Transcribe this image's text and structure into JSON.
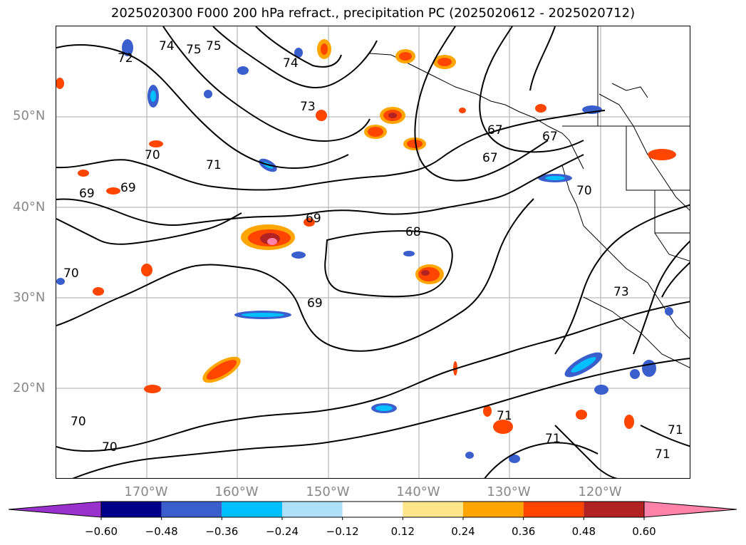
{
  "title": "2025020300 F000 200 hPa refract., precipitation PC (2025020612 - 2025020712)",
  "lat_labels": [
    "50°N",
    "40°N",
    "30°N",
    "20°N"
  ],
  "lon_labels": [
    "170°W",
    "160°W",
    "150°W",
    "140°W",
    "130°W",
    "120°W"
  ],
  "colorbar": {
    "ticks": [
      "−0.60",
      "−0.48",
      "−0.36",
      "−0.24",
      "−0.12",
      "0.12",
      "0.24",
      "0.36",
      "0.48",
      "0.60"
    ],
    "colors": [
      "#9932cc",
      "#00008b",
      "#3a5fcd",
      "#00bfff",
      "#afe0fa",
      "#ffffff",
      "#fde68a",
      "#ffa500",
      "#ff4500",
      "#b22222",
      "#ff82ab"
    ],
    "extend": "both"
  },
  "contour_labels": [
    "75",
    "75",
    "74",
    "74",
    "72",
    "73",
    "70",
    "71",
    "69",
    "69",
    "69",
    "68",
    "67",
    "67",
    "67",
    "69",
    "70",
    "70",
    "73",
    "71",
    "71",
    "71",
    "71",
    "70",
    "70"
  ]
}
